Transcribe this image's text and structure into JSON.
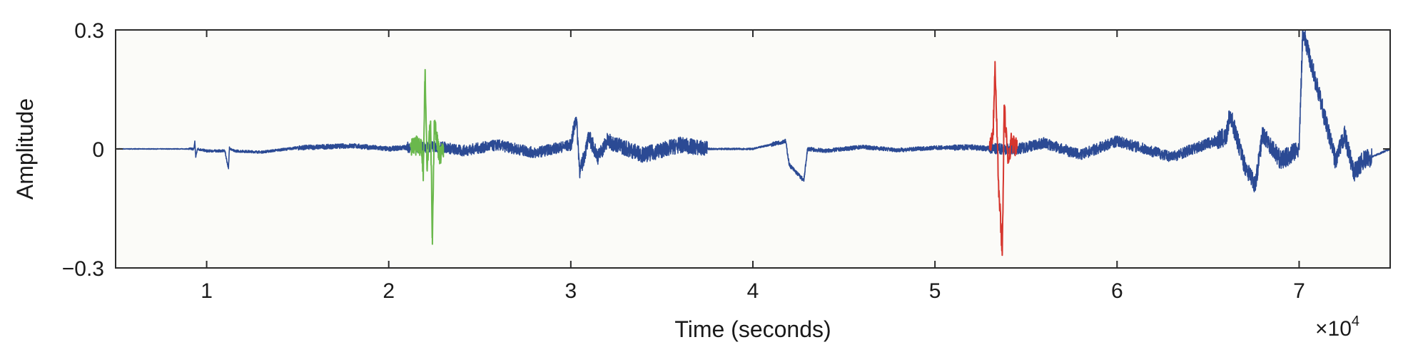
{
  "chart_data": {
    "type": "line",
    "title": "",
    "xlabel": "Time (seconds)",
    "ylabel": "Amplitude",
    "x_multiplier_label": "×10",
    "x_multiplier_exp": "4",
    "xlim": [
      0.5,
      7.5
    ],
    "ylim": [
      -0.3,
      0.3
    ],
    "x_tick_labels": [
      "1",
      "2",
      "3",
      "4",
      "5",
      "6",
      "7"
    ],
    "y_tick_labels": [
      "0.3",
      "0",
      "−0.3"
    ],
    "grid": false,
    "legend": "none",
    "colors": {
      "background": "#fbfbf8",
      "axis": "#2b2b2b",
      "signal": "#2b4a94",
      "highlight_green": "#6ab84c",
      "highlight_red": "#d6362e"
    },
    "series": [
      {
        "color_key": "signal",
        "x": [
          0.5,
          0.9,
          0.93,
          0.935,
          0.94,
          0.95,
          1.0,
          1.1,
          1.12,
          1.125,
          1.13,
          1.15,
          1.3,
          1.5,
          1.8,
          2.0,
          2.12,
          2.3,
          2.4,
          2.6,
          2.8,
          3.0,
          3.03,
          3.05,
          3.1,
          3.15,
          3.2,
          3.4,
          3.6,
          3.75,
          3.8,
          4.0,
          4.18,
          4.2,
          4.28,
          4.3,
          4.4,
          4.6,
          4.8,
          5.0,
          5.2,
          5.3,
          5.45,
          5.6,
          5.8,
          6.0,
          6.3,
          6.6,
          6.62,
          6.7,
          6.76,
          6.8,
          6.9,
          7.0,
          7.02,
          7.2,
          7.25,
          7.3,
          7.35,
          7.5
        ],
        "y": [
          0.0,
          0.0,
          0.0,
          0.02,
          -0.02,
          0.0,
          -0.005,
          -0.005,
          -0.05,
          0.005,
          0.0,
          -0.005,
          -0.008,
          0.003,
          0.008,
          0.0,
          0.005,
          0.005,
          -0.005,
          0.01,
          -0.01,
          0.01,
          0.08,
          -0.06,
          0.03,
          -0.02,
          0.02,
          -0.015,
          0.01,
          0.0,
          0.0,
          0.0,
          0.02,
          -0.04,
          -0.08,
          0.0,
          -0.005,
          0.005,
          -0.003,
          0.003,
          0.004,
          0.0,
          0.0,
          0.015,
          -0.015,
          0.02,
          -0.02,
          0.03,
          0.09,
          -0.04,
          -0.09,
          0.04,
          -0.03,
          0.0,
          0.3,
          -0.03,
          0.035,
          -0.06,
          -0.03,
          0.0
        ]
      },
      {
        "color_key": "highlight_green",
        "x": [
          2.12,
          2.18,
          2.19,
          2.2,
          2.21,
          2.23,
          2.24,
          2.25,
          2.28,
          2.3
        ],
        "y": [
          0.005,
          0.01,
          -0.06,
          0.2,
          -0.05,
          0.07,
          -0.24,
          0.07,
          -0.02,
          0.005
        ]
      },
      {
        "color_key": "highlight_red",
        "x": [
          5.3,
          5.32,
          5.33,
          5.35,
          5.37,
          5.38,
          5.4,
          5.42,
          5.45
        ],
        "y": [
          0.0,
          0.05,
          0.22,
          -0.1,
          -0.26,
          0.11,
          -0.03,
          0.02,
          0.0
        ]
      }
    ]
  }
}
